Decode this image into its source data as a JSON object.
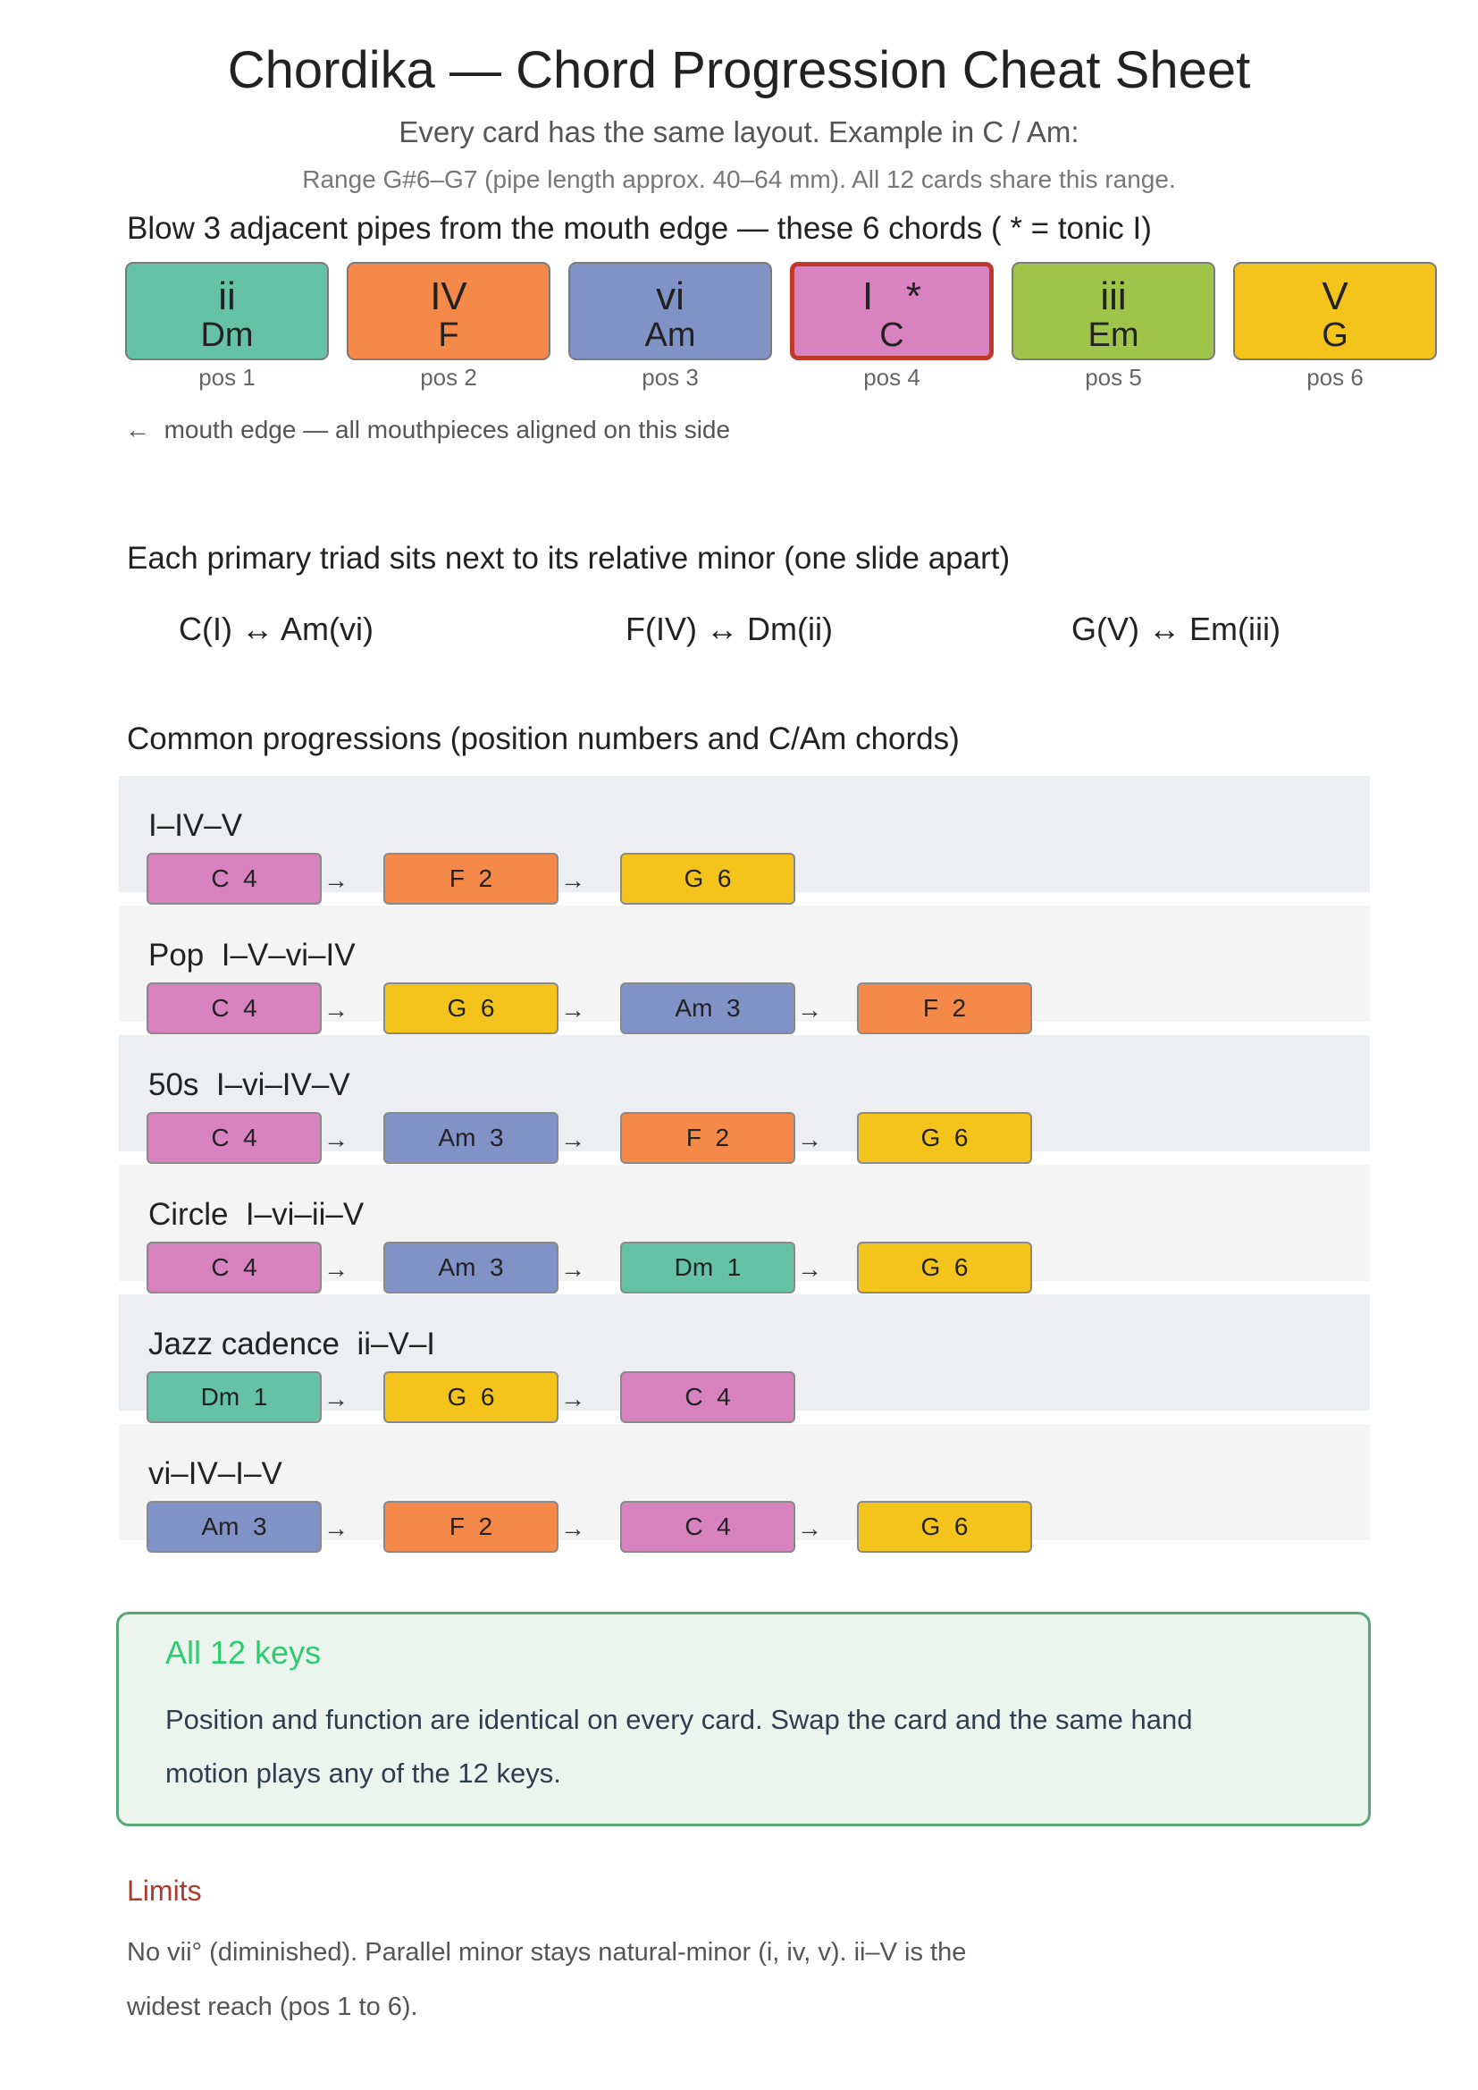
{
  "header": {
    "title": "Chordika — Chord Progression Cheat Sheet",
    "subtitle": "Every card has the same layout. Example in C / Am:",
    "range": "Range G#6–G7 (pipe length approx. 40–64 mm). All 12 cards share this range."
  },
  "positions": {
    "heading": "Blow 3 adjacent pipes from the mouth edge — these 6 chords ( *  = tonic I)",
    "cards": [
      {
        "roman": "ii",
        "chord": "Dm",
        "pos": "pos 1",
        "color": "#66c2a5"
      },
      {
        "roman": "IV",
        "chord": "F",
        "pos": "pos 2",
        "color": "#f4894a"
      },
      {
        "roman": "vi",
        "chord": "Am",
        "pos": "pos 3",
        "color": "#8092c6"
      },
      {
        "roman": "I   *",
        "chord": "C",
        "pos": "pos 4",
        "color": "#d883bf",
        "tonic": true
      },
      {
        "roman": "iii",
        "chord": "Em",
        "pos": "pos 5",
        "color": "#9ec54a"
      },
      {
        "roman": "V",
        "chord": "G",
        "pos": "pos 6",
        "color": "#f4c41c"
      }
    ],
    "mouth_arrow": "←",
    "mouth_note": "mouth edge — all mouthpieces aligned on this side"
  },
  "relative": {
    "heading": "Each primary triad sits next to its relative minor (one slide apart)",
    "pairs": [
      "C(I) ↔ Am(vi)",
      "F(IV) ↔ Dm(ii)",
      "G(V) ↔ Em(iii)"
    ]
  },
  "progressions": {
    "heading": "Common progressions (position numbers and C/Am chords)",
    "arrow": "→",
    "rows": [
      {
        "name": "I–IV–V",
        "chips": [
          {
            "label": "C  4",
            "color": "#d883bf"
          },
          {
            "label": "F  2",
            "color": "#f4894a"
          },
          {
            "label": "G  6",
            "color": "#f4c41c"
          }
        ]
      },
      {
        "name": "Pop  I–V–vi–IV",
        "chips": [
          {
            "label": "C  4",
            "color": "#d883bf"
          },
          {
            "label": "G  6",
            "color": "#f4c41c"
          },
          {
            "label": "Am  3",
            "color": "#8092c6"
          },
          {
            "label": "F  2",
            "color": "#f4894a"
          }
        ]
      },
      {
        "name": "50s  I–vi–IV–V",
        "chips": [
          {
            "label": "C  4",
            "color": "#d883bf"
          },
          {
            "label": "Am  3",
            "color": "#8092c6"
          },
          {
            "label": "F  2",
            "color": "#f4894a"
          },
          {
            "label": "G  6",
            "color": "#f4c41c"
          }
        ]
      },
      {
        "name": "Circle  I–vi–ii–V",
        "chips": [
          {
            "label": "C  4",
            "color": "#d883bf"
          },
          {
            "label": "Am  3",
            "color": "#8092c6"
          },
          {
            "label": "Dm  1",
            "color": "#66c2a5"
          },
          {
            "label": "G  6",
            "color": "#f4c41c"
          }
        ]
      },
      {
        "name": "Jazz cadence  ii–V–I",
        "chips": [
          {
            "label": "Dm  1",
            "color": "#66c2a5"
          },
          {
            "label": "G  6",
            "color": "#f4c41c"
          },
          {
            "label": "C  4",
            "color": "#d883bf"
          }
        ]
      },
      {
        "name": "vi–IV–I–V",
        "chips": [
          {
            "label": "Am  3",
            "color": "#8092c6"
          },
          {
            "label": "F  2",
            "color": "#f4894a"
          },
          {
            "label": "C  4",
            "color": "#d883bf"
          },
          {
            "label": "G  6",
            "color": "#f4c41c"
          }
        ]
      }
    ]
  },
  "keys": {
    "title": "All 12 keys",
    "text": "Position and function are identical on every card. Swap the card and the same hand motion plays any of the 12 keys."
  },
  "limits": {
    "title": "Limits",
    "text": "No vii° (diminished). Parallel minor stays natural-minor (i, iv, v). ii–V is the widest reach (pos 1 to 6)."
  }
}
